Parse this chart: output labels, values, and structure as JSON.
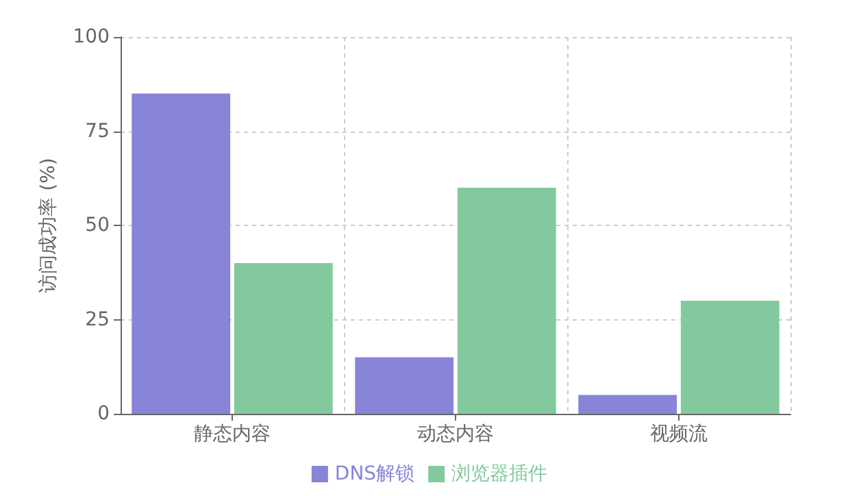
{
  "chart_data": {
    "type": "bar",
    "ylabel": "访问成功率 (%)",
    "categories": [
      "静态内容",
      "动态内容",
      "视频流"
    ],
    "series": [
      {
        "name": "DNS解锁",
        "color": "#8884d8",
        "values": [
          85,
          15,
          5
        ]
      },
      {
        "name": "浏览器插件",
        "color": "#82ca9d",
        "values": [
          40,
          60,
          30
        ]
      }
    ],
    "ylim": [
      0,
      100
    ],
    "yticks": [
      0,
      25,
      50,
      75,
      100
    ],
    "grid": true,
    "legend": "bottom"
  }
}
